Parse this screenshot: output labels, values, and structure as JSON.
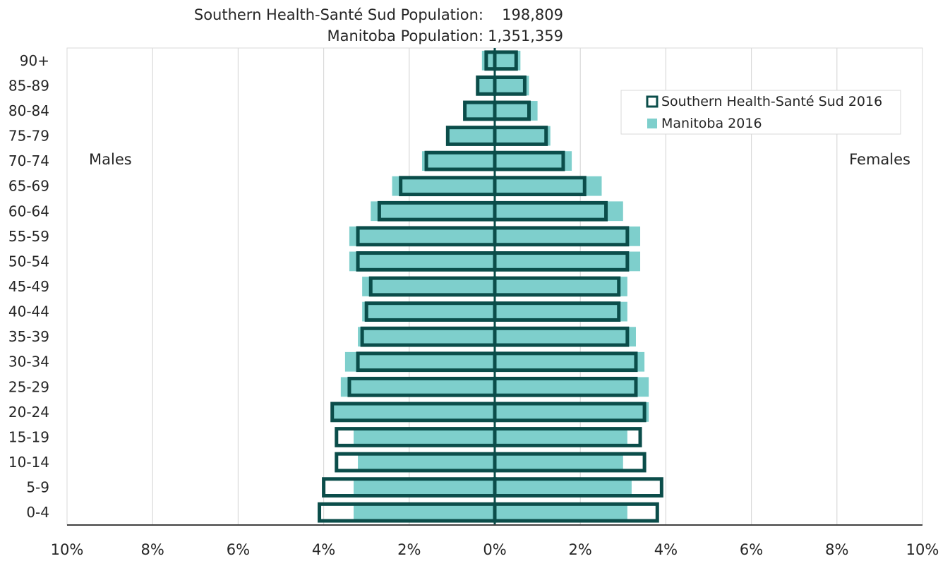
{
  "header": {
    "line1_label": "Southern Health-Santé Sud Population:",
    "line1_value": "198,809",
    "line2_label": "Manitoba Population:",
    "line2_value": "1,351,359"
  },
  "side_labels": {
    "left": "Males",
    "right": "Females"
  },
  "colors": {
    "outline": "#0b4d4a",
    "fill": "#7ecfcc",
    "grid": "#d9d9d9",
    "axis": "#404040"
  },
  "chart_data": {
    "type": "bar",
    "orientation": "horizontal",
    "subtype": "population-pyramid",
    "categories": [
      "0-4",
      "5-9",
      "10-14",
      "15-19",
      "20-24",
      "25-29",
      "30-34",
      "35-39",
      "40-44",
      "45-49",
      "50-54",
      "55-59",
      "60-64",
      "65-69",
      "70-74",
      "75-79",
      "80-84",
      "85-89",
      "90+"
    ],
    "xlim": [
      -10,
      10
    ],
    "x_ticks": [
      -10,
      -8,
      -6,
      -4,
      -2,
      0,
      2,
      4,
      6,
      8,
      10
    ],
    "x_tick_labels": [
      "10%",
      "8%",
      "6%",
      "4%",
      "2%",
      "0%",
      "2%",
      "4%",
      "6%",
      "8%",
      "10%"
    ],
    "legend_position": "top-right",
    "grid": true,
    "series": [
      {
        "name": "Southern Health-Santé Sud 2016",
        "style": "outline",
        "males": [
          4.1,
          4.0,
          3.7,
          3.7,
          3.8,
          3.4,
          3.2,
          3.1,
          3.0,
          2.9,
          3.2,
          3.2,
          2.7,
          2.2,
          1.6,
          1.1,
          0.7,
          0.4,
          0.2
        ],
        "females": [
          3.8,
          3.9,
          3.5,
          3.4,
          3.5,
          3.3,
          3.3,
          3.1,
          2.9,
          2.9,
          3.1,
          3.1,
          2.6,
          2.1,
          1.6,
          1.2,
          0.8,
          0.7,
          0.5
        ]
      },
      {
        "name": "Manitoba 2016",
        "style": "fill",
        "males": [
          3.3,
          3.3,
          3.2,
          3.3,
          3.8,
          3.6,
          3.5,
          3.2,
          3.1,
          3.1,
          3.4,
          3.4,
          2.9,
          2.4,
          1.7,
          1.1,
          0.7,
          0.4,
          0.3
        ],
        "females": [
          3.1,
          3.2,
          3.0,
          3.1,
          3.6,
          3.6,
          3.5,
          3.3,
          3.1,
          3.1,
          3.4,
          3.4,
          3.0,
          2.5,
          1.8,
          1.3,
          1.0,
          0.8,
          0.6
        ]
      }
    ]
  }
}
